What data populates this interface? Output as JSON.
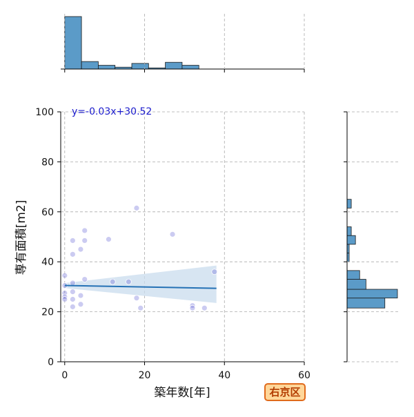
{
  "ward_label": "右京区",
  "chart_data": {
    "type": "scatter",
    "equation": "y=-0.03x+30.52",
    "xlabel": "築年数[年]",
    "ylabel": "専有面積[m2]",
    "xlim": [
      -1,
      60
    ],
    "ylim": [
      0,
      100
    ],
    "x_ticks": [
      0,
      20,
      40,
      60
    ],
    "y_ticks": [
      0,
      20,
      40,
      60,
      80,
      100
    ],
    "grid": true,
    "regression": {
      "slope": -0.03,
      "intercept": 30.52,
      "x_range": [
        0,
        38
      ],
      "ci_low": [
        29.5,
        23.5
      ],
      "ci_high": [
        31.5,
        38.5
      ]
    },
    "colors": {
      "points": "#6b6bd6",
      "line": "#2471b5",
      "band": "#c9dced",
      "hist": "#5b9bc8",
      "equation": "#1a1acc"
    },
    "points": [
      [
        0,
        34.5
      ],
      [
        0,
        30.5
      ],
      [
        0,
        27.5
      ],
      [
        0,
        26
      ],
      [
        0,
        25
      ],
      [
        2,
        48.5
      ],
      [
        2,
        43
      ],
      [
        2,
        31.5
      ],
      [
        2,
        28
      ],
      [
        2,
        25
      ],
      [
        2,
        22
      ],
      [
        4,
        45
      ],
      [
        4,
        26.5
      ],
      [
        4,
        23
      ],
      [
        5,
        52.5
      ],
      [
        5,
        48.5
      ],
      [
        5,
        33
      ],
      [
        11,
        49
      ],
      [
        12,
        32
      ],
      [
        16,
        32
      ],
      [
        18,
        61.5
      ],
      [
        18,
        25.5
      ],
      [
        19,
        21.5
      ],
      [
        27,
        51
      ],
      [
        32,
        22.5
      ],
      [
        32,
        21.5
      ],
      [
        35,
        21.5
      ],
      [
        37.5,
        36
      ]
    ],
    "x_hist": {
      "bin_edges": [
        0,
        4.2,
        8.4,
        12.6,
        16.8,
        21,
        25.2,
        29.4,
        33.6,
        37.8
      ],
      "counts": [
        14,
        2,
        1,
        0.5,
        1.5,
        0.3,
        1.8,
        1,
        0
      ]
    },
    "y_hist": {
      "bin_edges": [
        21.5,
        25.5,
        29,
        33,
        36.5,
        40,
        43.5,
        47,
        50.5,
        54,
        58,
        61.5,
        65
      ],
      "counts": [
        9,
        12,
        4.5,
        3,
        0,
        0.5,
        0.5,
        2,
        1,
        0,
        0,
        1
      ]
    }
  }
}
